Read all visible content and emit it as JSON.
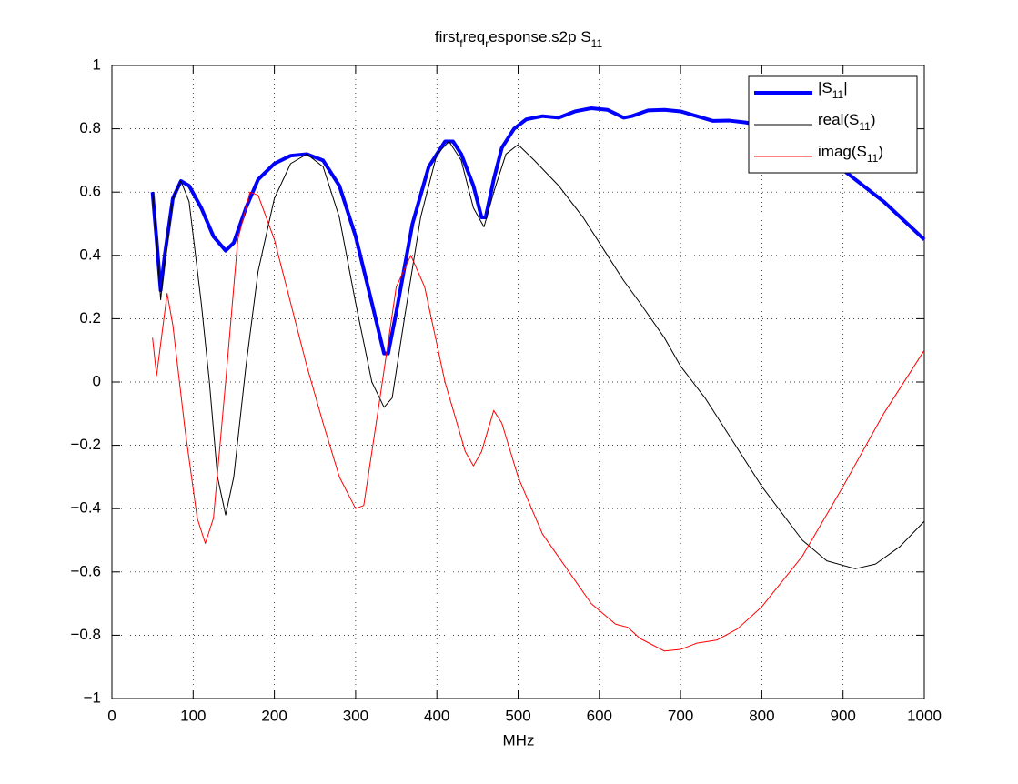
{
  "chart_data": {
    "type": "line",
    "title": [
      {
        "text": "first"
      },
      {
        "text": "f",
        "sub": true
      },
      {
        "text": "req"
      },
      {
        "text": "r",
        "sub": true
      },
      {
        "text": "esponse.s2p S"
      },
      {
        "text": "11",
        "sub": true
      }
    ],
    "x_label": "MHz",
    "xlim": [
      0,
      1000
    ],
    "xticks": [
      0,
      100,
      200,
      300,
      400,
      500,
      600,
      700,
      800,
      900,
      1000
    ],
    "ylim": [
      -1,
      1
    ],
    "yticks": [
      {
        "value": -1,
        "label": "−1"
      },
      {
        "value": -0.8,
        "label": "−0.8"
      },
      {
        "value": -0.6,
        "label": "−0.6"
      },
      {
        "value": -0.4,
        "label": "−0.4"
      },
      {
        "value": -0.2,
        "label": "−0.2"
      },
      0,
      0.2,
      0.4,
      0.6,
      0.8,
      1
    ],
    "grid": true,
    "legend": "top-right",
    "series": [
      {
        "name": "|S11|",
        "color": "#0000ff",
        "width": 4,
        "x": [
          50,
          55,
          60,
          65,
          75,
          85,
          95,
          110,
          125,
          140,
          150,
          165,
          180,
          200,
          220,
          240,
          260,
          280,
          300,
          320,
          335,
          340,
          350,
          370,
          390,
          410,
          420,
          430,
          445,
          455,
          460,
          470,
          480,
          495,
          510,
          530,
          550,
          570,
          590,
          610,
          630,
          640,
          660,
          680,
          700,
          720,
          740,
          760,
          780,
          800,
          850,
          900,
          950,
          1000
        ],
        "values": [
          0.6,
          0.45,
          0.29,
          0.4,
          0.58,
          0.635,
          0.62,
          0.55,
          0.46,
          0.415,
          0.44,
          0.55,
          0.64,
          0.69,
          0.715,
          0.72,
          0.7,
          0.62,
          0.46,
          0.25,
          0.09,
          0.09,
          0.22,
          0.5,
          0.68,
          0.76,
          0.76,
          0.72,
          0.62,
          0.52,
          0.52,
          0.64,
          0.74,
          0.8,
          0.83,
          0.84,
          0.835,
          0.855,
          0.865,
          0.86,
          0.835,
          0.84,
          0.858,
          0.86,
          0.855,
          0.84,
          0.825,
          0.826,
          0.82,
          0.81,
          0.76,
          0.67,
          0.57,
          0.45
        ]
      },
      {
        "name": "real(S11)",
        "color": "#000000",
        "width": 1,
        "x": [
          50,
          55,
          60,
          65,
          75,
          85,
          95,
          110,
          120,
          130,
          140,
          150,
          165,
          180,
          200,
          220,
          240,
          260,
          280,
          300,
          320,
          335,
          345,
          360,
          380,
          400,
          415,
          430,
          445,
          458,
          470,
          485,
          500,
          520,
          550,
          580,
          610,
          630,
          650,
          680,
          700,
          730,
          760,
          800,
          850,
          880,
          915,
          940,
          970,
          1000
        ],
        "values": [
          0.6,
          0.45,
          0.26,
          0.38,
          0.58,
          0.635,
          0.57,
          0.25,
          0.0,
          -0.3,
          -0.42,
          -0.3,
          0.05,
          0.35,
          0.58,
          0.69,
          0.72,
          0.68,
          0.52,
          0.25,
          0.0,
          -0.08,
          -0.05,
          0.2,
          0.52,
          0.72,
          0.76,
          0.7,
          0.55,
          0.49,
          0.6,
          0.72,
          0.75,
          0.7,
          0.62,
          0.52,
          0.4,
          0.32,
          0.25,
          0.14,
          0.05,
          -0.05,
          -0.17,
          -0.33,
          -0.5,
          -0.565,
          -0.59,
          -0.575,
          -0.52,
          -0.44
        ]
      },
      {
        "name": "imag(S11)",
        "color": "#ff0000",
        "width": 1,
        "x": [
          50,
          55,
          60,
          68,
          75,
          90,
          105,
          115,
          125,
          140,
          155,
          170,
          180,
          200,
          220,
          240,
          260,
          280,
          300,
          310,
          330,
          350,
          368,
          385,
          410,
          435,
          445,
          455,
          470,
          480,
          500,
          530,
          560,
          590,
          620,
          635,
          650,
          680,
          700,
          720,
          745,
          770,
          800,
          850,
          900,
          950,
          1000
        ],
        "values": [
          0.14,
          0.02,
          0.12,
          0.28,
          0.18,
          -0.15,
          -0.43,
          -0.51,
          -0.43,
          0.0,
          0.45,
          0.6,
          0.59,
          0.45,
          0.25,
          0.05,
          -0.13,
          -0.3,
          -0.4,
          -0.39,
          -0.05,
          0.3,
          0.4,
          0.3,
          0.0,
          -0.22,
          -0.265,
          -0.22,
          -0.09,
          -0.13,
          -0.3,
          -0.48,
          -0.59,
          -0.7,
          -0.765,
          -0.775,
          -0.81,
          -0.85,
          -0.845,
          -0.825,
          -0.815,
          -0.78,
          -0.71,
          -0.55,
          -0.33,
          -0.1,
          0.1
        ]
      }
    ]
  }
}
